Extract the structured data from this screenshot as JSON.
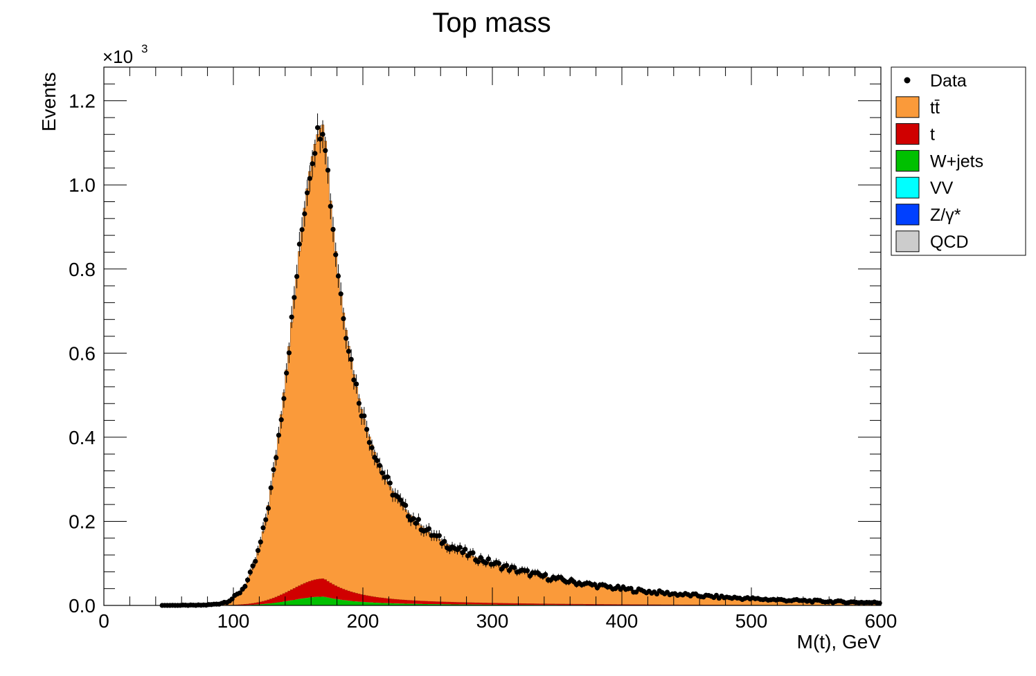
{
  "chart_data": {
    "type": "bar",
    "style": "stacked-histogram-with-data-points",
    "title": "Top mass",
    "xlabel": "M(t), GeV",
    "ylabel": "Events",
    "y_exponent_label": "×10",
    "y_exponent_power": "3",
    "xlim": [
      0,
      600
    ],
    "ylim": [
      0,
      1280
    ],
    "x_ticks": [
      0,
      100,
      200,
      300,
      400,
      500,
      600
    ],
    "x_tick_labels": [
      "0",
      "100",
      "200",
      "300",
      "400",
      "500",
      "600"
    ],
    "y_ticks": [
      0,
      200,
      400,
      600,
      800,
      1000,
      1200
    ],
    "y_tick_labels": [
      "0.0",
      "0.2",
      "0.4",
      "0.6",
      "0.8",
      "1.0",
      "1.2"
    ],
    "grid": false,
    "legend_position": "top-right outside plot",
    "bin_width": 2,
    "x_start": 40,
    "x_end": 600,
    "shape": {
      "peak": 170,
      "peak_value": 1080,
      "left_sigma": 18,
      "right_decay_fast": 22,
      "right_decay_slow": 110,
      "slow_fraction": 0.28,
      "singletop_fraction": 0.022,
      "wjets_fraction": 0.012
    },
    "legend": [
      {
        "label": "Data",
        "kind": "marker",
        "color": "#000000"
      },
      {
        "label": "tt̄",
        "kind": "fill",
        "color": "#fa9a3a"
      },
      {
        "label": "t",
        "kind": "fill",
        "color": "#d00000"
      },
      {
        "label": "W+jets",
        "kind": "fill",
        "color": "#00c000"
      },
      {
        "label": "VV",
        "kind": "fill",
        "color": "#00ffff"
      },
      {
        "label": "Z/γ*",
        "kind": "fill",
        "color": "#0040ff"
      },
      {
        "label": "QCD",
        "kind": "fill",
        "color": "#cccccc"
      }
    ]
  }
}
